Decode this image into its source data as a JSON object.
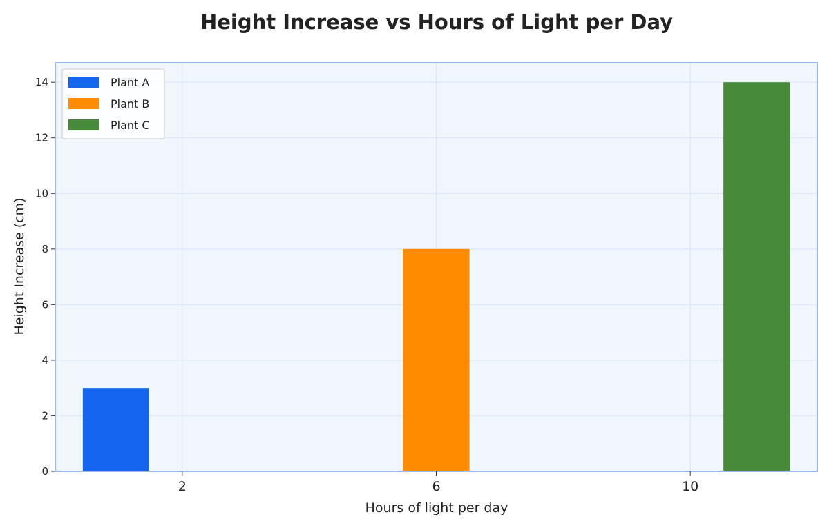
{
  "chart_data": {
    "type": "bar",
    "title": "Height Increase vs Hours of Light per Day",
    "xlabel": "Hours of light per day",
    "ylabel": "Height Increase (cm)",
    "categories": [
      "2",
      "6",
      "10"
    ],
    "series": [
      {
        "name": "Plant A",
        "color": "#1565ee",
        "values": [
          3,
          0,
          0
        ]
      },
      {
        "name": "Plant B",
        "color": "#ff8c00",
        "values": [
          0,
          8,
          0
        ]
      },
      {
        "name": "Plant C",
        "color": "#468a3a",
        "values": [
          0,
          0,
          14
        ]
      }
    ],
    "ylim": [
      0,
      14.7
    ],
    "yticks": [
      0,
      2,
      4,
      6,
      8,
      10,
      12,
      14
    ],
    "grid": true,
    "legend_position": "top-left",
    "colors": {
      "plot_background": "#f1f6fd",
      "plot_border": "#9bb8ef",
      "grid": "#dde7f8"
    }
  }
}
